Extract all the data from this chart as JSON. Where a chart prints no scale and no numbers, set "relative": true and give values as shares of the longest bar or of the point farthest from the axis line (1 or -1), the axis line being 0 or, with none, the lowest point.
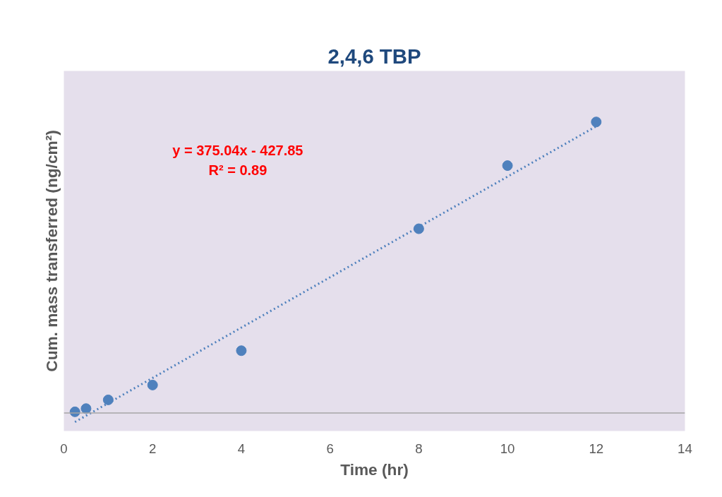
{
  "chart_data": {
    "type": "scatter",
    "title": "2,4,6 TBP",
    "xlabel": "Time (hr)",
    "ylabel": "Cum. mass transferred (ng/cm²)",
    "relative": true,
    "xlim": [
      0,
      14
    ],
    "xticks": [
      0,
      2,
      4,
      6,
      8,
      10,
      12,
      14
    ],
    "grid": false,
    "marker": "circle",
    "ref_lines": [
      {
        "axis": "y",
        "value": 0,
        "color": "#a6a6a6"
      }
    ],
    "series": [
      {
        "color": "#4f81bd",
        "x": [
          0.25,
          0.5,
          1,
          2,
          4,
          8,
          10,
          12
        ],
        "values": [
          0.004,
          0.015,
          0.045,
          0.096,
          0.214,
          0.633,
          0.85,
          1
        ]
      },
      {
        "type": "line",
        "color": "#4f81bd",
        "line_style": "dotted",
        "marker": "none",
        "x": [
          0.25,
          12
        ],
        "values": [
          -0.031,
          0.985
        ]
      }
    ],
    "annotations": [
      "y = 375.04x - 427.85",
      "R² = 0.89"
    ]
  }
}
